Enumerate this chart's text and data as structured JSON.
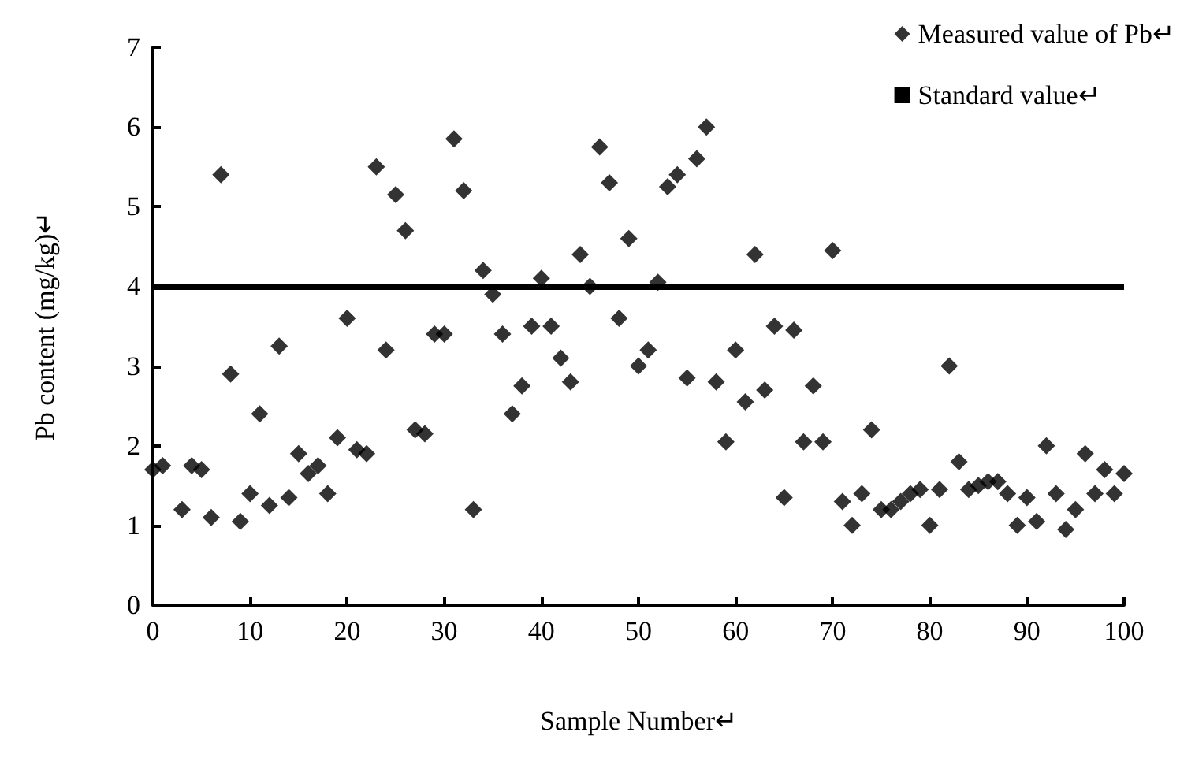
{
  "chart_data": {
    "type": "scatter",
    "xlabel": "Sample Number↵",
    "ylabel": "Pb content (mg/kg)↵",
    "series": [
      {
        "name": "Measured value of Pb↵",
        "color": "#000000",
        "x": [
          0,
          1,
          3,
          4,
          5,
          6,
          7,
          8,
          9,
          10,
          11,
          12,
          13,
          14,
          15,
          16,
          17,
          18,
          19,
          20,
          21,
          22,
          23,
          24,
          25,
          26,
          27,
          28,
          29,
          30,
          31,
          32,
          33,
          34,
          35,
          36,
          37,
          38,
          39,
          40,
          41,
          42,
          43,
          44,
          45,
          46,
          47,
          48,
          49,
          50,
          51,
          52,
          53,
          54,
          55,
          56,
          57,
          58,
          59,
          60,
          61,
          62,
          63,
          64,
          65,
          66,
          67,
          68,
          69,
          70,
          71,
          72,
          73,
          74,
          75,
          76,
          77,
          78,
          79,
          80,
          81,
          82,
          83,
          84,
          85,
          86,
          87,
          88,
          89,
          90,
          91,
          92,
          93,
          94,
          95,
          96,
          97,
          98,
          99,
          100
        ],
        "values": [
          1.7,
          1.75,
          1.2,
          1.75,
          1.7,
          1.1,
          5.4,
          2.9,
          1.05,
          1.4,
          2.4,
          1.25,
          3.25,
          1.35,
          1.9,
          1.65,
          1.75,
          1.4,
          2.1,
          3.6,
          1.95,
          1.9,
          5.5,
          3.2,
          5.15,
          4.7,
          2.2,
          2.15,
          3.4,
          3.4,
          5.85,
          5.2,
          1.2,
          4.2,
          3.9,
          3.4,
          2.4,
          2.75,
          3.5,
          4.1,
          3.5,
          3.1,
          2.8,
          4.4,
          4.0,
          5.75,
          5.3,
          3.6,
          4.6,
          3.0,
          3.2,
          4.05,
          5.25,
          5.4,
          2.85,
          5.6,
          6.0,
          2.8,
          2.05,
          3.2,
          2.55,
          4.4,
          2.7,
          3.5,
          1.35,
          3.45,
          2.05,
          2.75,
          2.05,
          4.45,
          1.3,
          1.0,
          1.4,
          2.2,
          1.2,
          1.2,
          1.3,
          1.4,
          1.45,
          1.0,
          1.45,
          3.0,
          1.8,
          1.45,
          1.5,
          1.55,
          1.55,
          1.4,
          1.0,
          1.35,
          1.05,
          2.0,
          1.4,
          0.95,
          1.2,
          1.9,
          1.4,
          1.7,
          1.4,
          1.65
        ]
      }
    ],
    "ref_lines": [
      {
        "axis": "y",
        "value": 4,
        "label": "Standard value↵",
        "color": "#000000"
      }
    ],
    "xlim": [
      0,
      100
    ],
    "xticks": [
      0,
      10,
      20,
      30,
      40,
      50,
      60,
      70,
      80,
      90,
      100
    ],
    "ylim": [
      0,
      7
    ],
    "yticks": [
      0,
      1,
      2,
      3,
      4,
      5,
      6,
      7
    ],
    "grid": false,
    "legend": "top right",
    "marker": "diamond"
  }
}
